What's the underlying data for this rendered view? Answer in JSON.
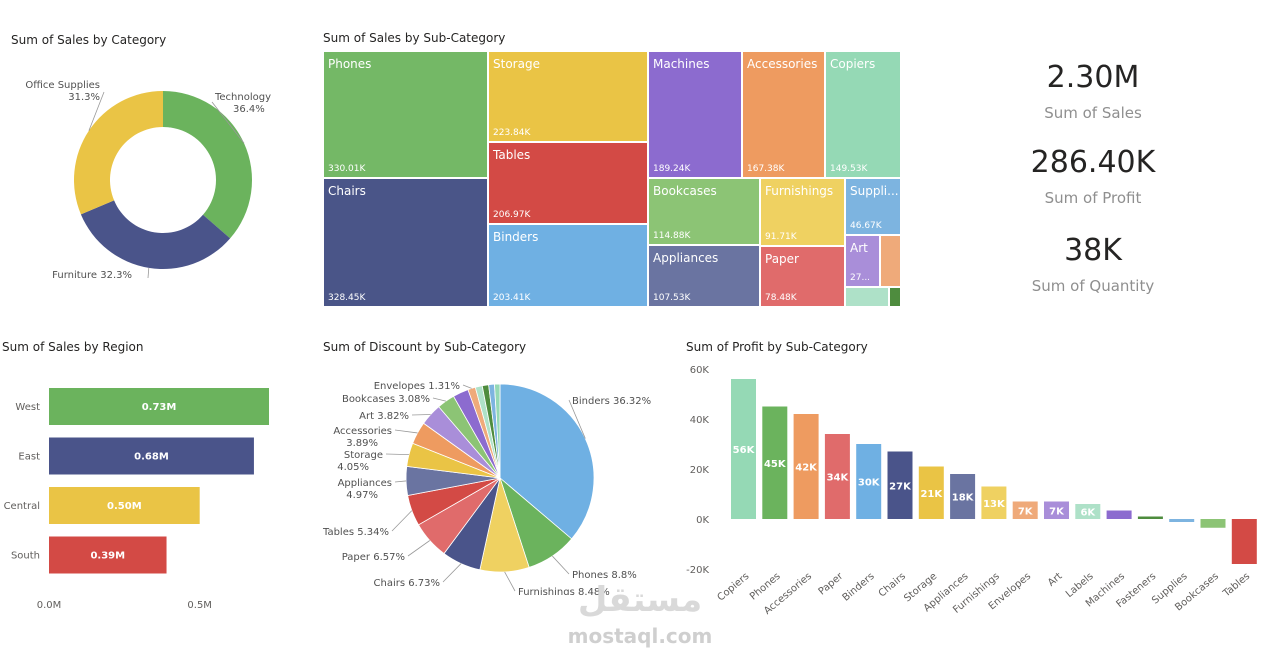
{
  "titles": {
    "donut": "Sum of Sales by Category",
    "treemap": "Sum of Sales by Sub-Category",
    "region": "Sum of Sales by Region",
    "discount": "Sum of Discount by Sub-Category",
    "profit": "Sum of Profit by Sub-Category"
  },
  "kpis": [
    {
      "value": "2.30M",
      "label": "Sum of Sales"
    },
    {
      "value": "286.40K",
      "label": "Sum of Profit"
    },
    {
      "value": "38K",
      "label": "Sum of Quantity"
    }
  ],
  "watermark": {
    "arabic": "مستقل",
    "latin": "mostaql.com"
  },
  "chart_data": [
    {
      "type": "pie",
      "variant": "donut",
      "title": "Sum of Sales by Category",
      "slices": [
        {
          "name": "Technology",
          "value": 36.4,
          "label": "Technology",
          "pct": "36.4%",
          "color": "#6bb35d"
        },
        {
          "name": "Furniture",
          "value": 32.3,
          "label": "Furniture 32.3%",
          "color": "#4a548a"
        },
        {
          "name": "Office Supplies",
          "value": 31.3,
          "label": "Office Supplies",
          "pct": "31.3%",
          "color": "#eac445"
        }
      ]
    },
    {
      "type": "treemap",
      "title": "Sum of Sales by Sub-Category",
      "items": [
        {
          "name": "Phones",
          "value": "330.01K",
          "color": "#74b866"
        },
        {
          "name": "Storage",
          "value": "223.84K",
          "color": "#eac445"
        },
        {
          "name": "Machines",
          "value": "189.24K",
          "color": "#8c6bcf"
        },
        {
          "name": "Accessories",
          "value": "167.38K",
          "color": "#ee9b60"
        },
        {
          "name": "Copiers",
          "value": "149.53K",
          "color": "#95d9b5"
        },
        {
          "name": "Chairs",
          "value": "328.45K",
          "color": "#4a5588"
        },
        {
          "name": "Tables",
          "value": "206.97K",
          "color": "#d34a45"
        },
        {
          "name": "Binders",
          "value": "203.41K",
          "color": "#6fb0e3"
        },
        {
          "name": "Bookcases",
          "value": "114.88K",
          "color": "#8cc475"
        },
        {
          "name": "Furnishings",
          "value": "91.71K",
          "color": "#efd161"
        },
        {
          "name": "Suppli...",
          "value": "46.67K",
          "color": "#7db4e0"
        },
        {
          "name": "Appliances",
          "value": "107.53K",
          "color": "#6a74a1"
        },
        {
          "name": "Paper",
          "value": "78.48K",
          "color": "#e06b6b"
        },
        {
          "name": "Art",
          "value": "27...",
          "color": "#a98ed9"
        },
        {
          "name": "",
          "value": "",
          "color": "#efaa7a"
        },
        {
          "name": "",
          "value": "",
          "color": "#aee1c8"
        },
        {
          "name": "",
          "value": "",
          "color": "#4e8c3e"
        }
      ]
    },
    {
      "type": "bar",
      "orientation": "horizontal",
      "title": "Sum of Sales by Region",
      "categories": [
        "West",
        "East",
        "Central",
        "South"
      ],
      "values": [
        0.73,
        0.68,
        0.5,
        0.39
      ],
      "labels": [
        "0.73M",
        "0.68M",
        "0.50M",
        "0.39M"
      ],
      "colors": [
        "#6bb35d",
        "#4a548a",
        "#eac445",
        "#d34a45"
      ],
      "xticks": [
        "0.0M",
        "0.5M"
      ],
      "xlim": [
        0,
        0.73
      ]
    },
    {
      "type": "pie",
      "title": "Sum of Discount by Sub-Category",
      "slices": [
        {
          "name": "Binders",
          "value": 36.32,
          "label": "Binders 36.32%",
          "color": "#6fb0e3"
        },
        {
          "name": "Phones",
          "value": 8.8,
          "label": "Phones 8.8%",
          "color": "#6bb35d"
        },
        {
          "name": "Furnishings",
          "value": 8.48,
          "label": "Furnishings 8.48%",
          "color": "#efd161"
        },
        {
          "name": "Chairs",
          "value": 6.73,
          "label": "Chairs 6.73%",
          "color": "#4a548a"
        },
        {
          "name": "Paper",
          "value": 6.57,
          "label": "Paper 6.57%",
          "color": "#e06b6b"
        },
        {
          "name": "Tables",
          "value": 5.34,
          "label": "Tables 5.34%",
          "color": "#d34a45"
        },
        {
          "name": "Appliances",
          "value": 4.97,
          "label": "Appliances",
          "pct": "4.97%",
          "color": "#6a74a1"
        },
        {
          "name": "Storage",
          "value": 4.05,
          "label": "Storage",
          "pct": "4.05%",
          "color": "#eac445"
        },
        {
          "name": "Accessories",
          "value": 3.89,
          "label": "Accessories",
          "pct": "3.89%",
          "color": "#ee9b60"
        },
        {
          "name": "Art",
          "value": 3.82,
          "label": "Art 3.82%",
          "color": "#a98ed9"
        },
        {
          "name": "Bookcases",
          "value": 3.08,
          "label": "Bookcases 3.08%",
          "color": "#8cc475"
        },
        {
          "name": "Machines",
          "value": 2.7,
          "color": "#8c6bcf"
        },
        {
          "name": "Envelopes",
          "value": 1.31,
          "label": "Envelopes 1.31%",
          "color": "#efaa7a"
        },
        {
          "name": "Labels",
          "value": 1.2,
          "color": "#aee1c8"
        },
        {
          "name": "Fasteners",
          "value": 1.1,
          "color": "#4e8c3e"
        },
        {
          "name": "Supplies",
          "value": 1.0,
          "color": "#7db4e0"
        },
        {
          "name": "Copiers",
          "value": 0.94,
          "color": "#95d9b5"
        }
      ]
    },
    {
      "type": "bar",
      "title": "Sum of Profit by Sub-Category",
      "categories": [
        "Copiers",
        "Phones",
        "Accessories",
        "Paper",
        "Binders",
        "Chairs",
        "Storage",
        "Appliances",
        "Furnishings",
        "Envelopes",
        "Art",
        "Labels",
        "Machines",
        "Fasteners",
        "Supplies",
        "Bookcases",
        "Tables"
      ],
      "values": [
        56,
        45,
        42,
        34,
        30,
        27,
        21,
        18,
        13,
        7,
        7,
        6,
        3.4,
        1.0,
        -1.2,
        -3.5,
        -18
      ],
      "labels": [
        "56K",
        "45K",
        "42K",
        "34K",
        "30K",
        "27K",
        "21K",
        "18K",
        "13K",
        "7K",
        "7K",
        "6K",
        "",
        "",
        "",
        "",
        ""
      ],
      "colors": [
        "#95d9b5",
        "#6bb35d",
        "#ee9b60",
        "#e06b6b",
        "#6fb0e3",
        "#4a548a",
        "#eac445",
        "#6a74a1",
        "#efd161",
        "#efaa7a",
        "#a98ed9",
        "#aee1c8",
        "#8c6bcf",
        "#4e8c3e",
        "#7db4e0",
        "#8cc475",
        "#d34a45"
      ],
      "yticks": [
        "60K",
        "40K",
        "20K",
        "0K",
        "-20K"
      ],
      "ylim": [
        -20,
        60
      ],
      "unit": "K"
    }
  ]
}
